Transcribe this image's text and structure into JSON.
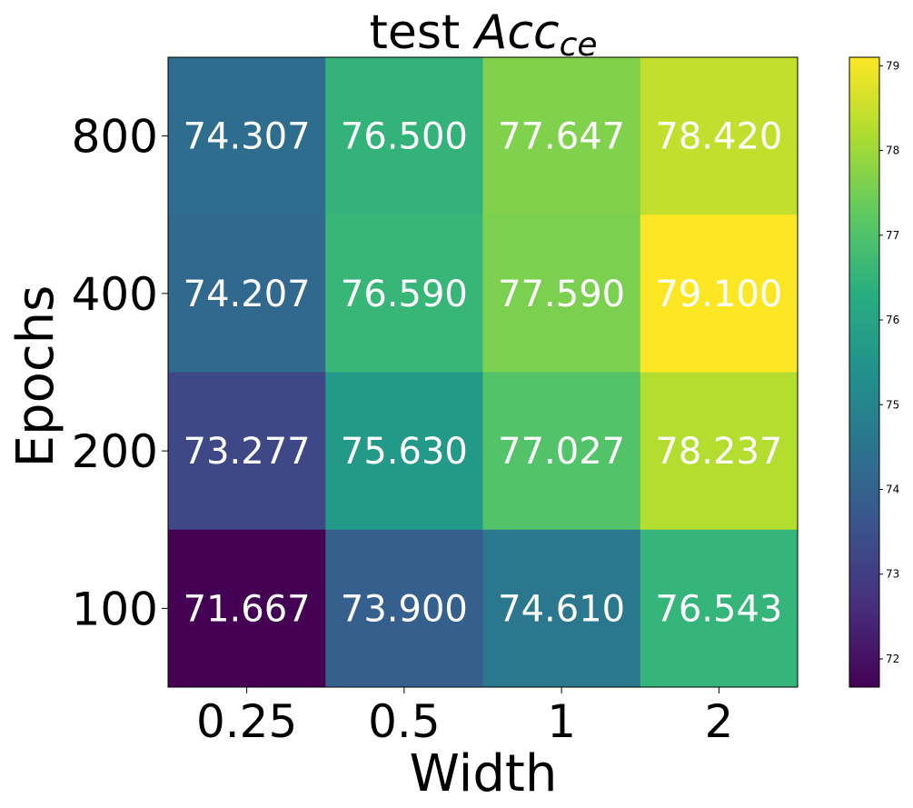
{
  "chart_data": {
    "type": "heatmap",
    "title": "test ",
    "title_math": "Acc",
    "title_subscript": "ce",
    "xlabel": "Width",
    "ylabel": "Epochs",
    "x_categories": [
      "0.25",
      "0.5",
      "1",
      "2"
    ],
    "y_categories": [
      "800",
      "400",
      "200",
      "100"
    ],
    "values": [
      [
        74.307,
        76.5,
        77.647,
        78.42
      ],
      [
        74.207,
        76.59,
        77.59,
        79.1
      ],
      [
        73.277,
        75.63,
        77.027,
        78.237
      ],
      [
        71.667,
        73.9,
        74.61,
        76.543
      ]
    ],
    "value_labels": [
      [
        "74.307",
        "76.500",
        "77.647",
        "78.420"
      ],
      [
        "74.207",
        "76.590",
        "77.590",
        "79.100"
      ],
      [
        "73.277",
        "75.630",
        "77.027",
        "78.237"
      ],
      [
        "71.667",
        "73.900",
        "74.610",
        "76.543"
      ]
    ],
    "colormap": "viridis",
    "colorbar": {
      "min": 71.667,
      "max": 79.1,
      "ticks": [
        72,
        73,
        74,
        75,
        76,
        77,
        78,
        79
      ],
      "tick_labels": [
        "72",
        "73",
        "74",
        "75",
        "76",
        "77",
        "78",
        "79"
      ]
    },
    "grid": false,
    "legend": "none"
  }
}
